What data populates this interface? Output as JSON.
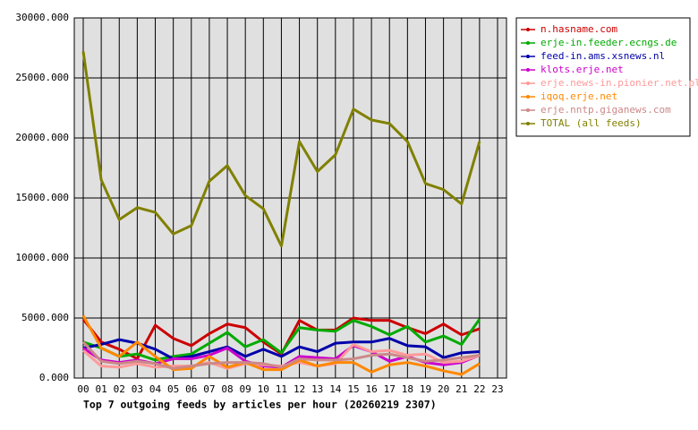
{
  "chart_data": {
    "type": "line",
    "title": "Top 7 outgoing feeds by articles per hour (20260219 2307)",
    "categories": [
      "00",
      "01",
      "02",
      "03",
      "04",
      "05",
      "06",
      "07",
      "08",
      "09",
      "10",
      "11",
      "12",
      "13",
      "14",
      "15",
      "16",
      "17",
      "18",
      "19",
      "20",
      "21",
      "22",
      "23"
    ],
    "ylim": [
      0,
      30000
    ],
    "yticks": [
      {
        "value": 0,
        "label": "0.000"
      },
      {
        "value": 5000,
        "label": "5000.000"
      },
      {
        "value": 10000,
        "label": "10000.000"
      },
      {
        "value": 15000,
        "label": "15000.000"
      },
      {
        "value": 20000,
        "label": "20000.000"
      },
      {
        "value": 25000,
        "label": "25000.000"
      },
      {
        "value": 30000,
        "label": "30000.000"
      }
    ],
    "grid": true,
    "legend": "outside-right",
    "series": [
      {
        "name": "n.hasname.com",
        "color": "#cc0000",
        "values": [
          4900,
          3000,
          2400,
          1600,
          4400,
          3300,
          2700,
          3700,
          4500,
          4200,
          3000,
          2000,
          4800,
          4000,
          4000,
          5000,
          4800,
          4800,
          4200,
          3700,
          4500,
          3600,
          4100,
          null
        ]
      },
      {
        "name": "erje-in.feeder.ecngs.de",
        "color": "#00aa00",
        "values": [
          3000,
          2500,
          1800,
          2000,
          1500,
          1800,
          2000,
          2900,
          3800,
          2600,
          3200,
          2100,
          4200,
          4000,
          3900,
          4800,
          4300,
          3600,
          4300,
          3000,
          3500,
          2800,
          4900,
          null
        ]
      },
      {
        "name": "feed-in.ams.xsnews.nl",
        "color": "#0000aa",
        "values": [
          2500,
          2800,
          3200,
          2900,
          2400,
          1600,
          1800,
          2200,
          2600,
          1800,
          2400,
          1800,
          2600,
          2200,
          2900,
          3000,
          3000,
          3300,
          2700,
          2600,
          1700,
          2100,
          2200,
          null
        ]
      },
      {
        "name": "klots.erje.net",
        "color": "#cc00cc",
        "values": [
          2500,
          1500,
          1300,
          1500,
          1200,
          1600,
          1600,
          1900,
          2500,
          1400,
          1000,
          900,
          1800,
          1700,
          1600,
          2700,
          2200,
          1400,
          1800,
          1300,
          1100,
          1300,
          1900,
          null
        ]
      },
      {
        "name": "erje.news-in.pionier.net.pl",
        "color": "#ff9999",
        "values": [
          2300,
          1000,
          900,
          1200,
          900,
          1000,
          1000,
          1300,
          800,
          1200,
          1100,
          1000,
          1300,
          1000,
          1200,
          2800,
          2200,
          2300,
          1900,
          2000,
          1300,
          1400,
          1900,
          null
        ]
      },
      {
        "name": "iqoq.erje.net",
        "color": "#ff8800",
        "values": [
          5200,
          2500,
          1800,
          3000,
          1800,
          700,
          800,
          1800,
          900,
          1300,
          700,
          700,
          1500,
          1000,
          1300,
          1300,
          500,
          1100,
          1300,
          1000,
          600,
          300,
          1200,
          null
        ]
      },
      {
        "name": "erje.nntp.giganews.com",
        "color": "#cc8888",
        "values": [
          3000,
          1400,
          1200,
          1400,
          1200,
          800,
          1000,
          1200,
          1300,
          1300,
          1200,
          900,
          1600,
          1500,
          1500,
          1600,
          1900,
          2000,
          1700,
          1400,
          1500,
          1700,
          1900,
          null
        ]
      },
      {
        "name": "TOTAL (all feeds)",
        "color": "#808000",
        "values": [
          27200,
          16500,
          13200,
          14200,
          13800,
          12000,
          12700,
          16400,
          17700,
          15200,
          14100,
          11000,
          19700,
          17200,
          18600,
          22400,
          21500,
          21200,
          19700,
          16200,
          15700,
          14500,
          19700,
          null
        ]
      }
    ]
  }
}
